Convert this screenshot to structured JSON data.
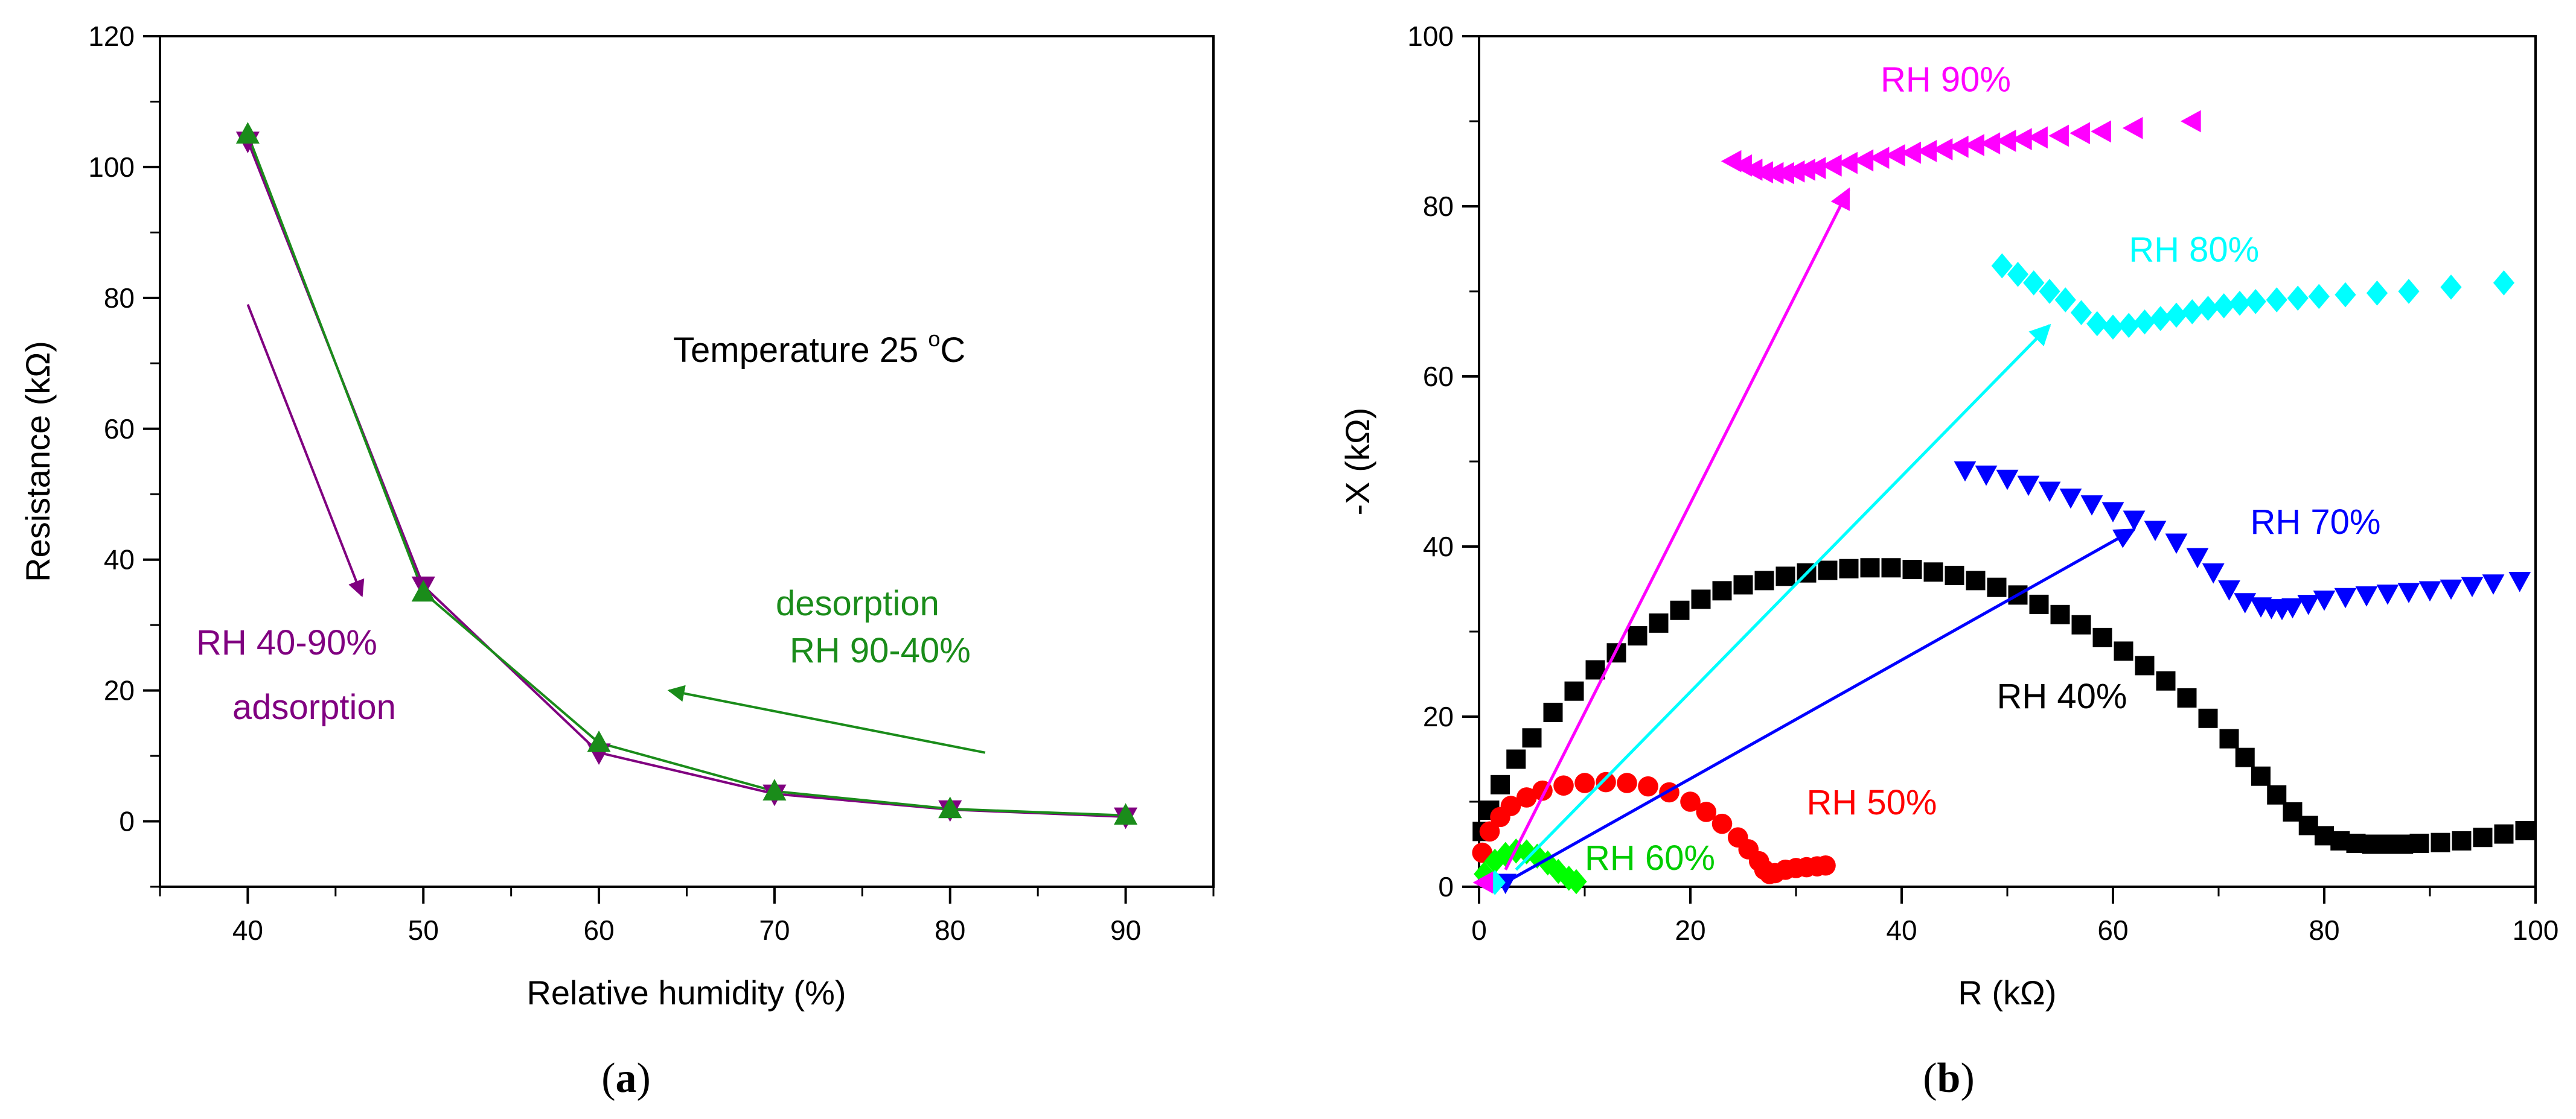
{
  "figure": {
    "panel_a_label": "a",
    "panel_b_label": "b"
  },
  "chart_data": [
    {
      "type": "line",
      "panel": "a",
      "title": "",
      "xlabel": "Relative humidity (%)",
      "ylabel": "Resistance (kΩ)",
      "xlim": [
        35,
        95
      ],
      "ylim": [
        -10,
        120
      ],
      "xticks": [
        40,
        50,
        60,
        70,
        80,
        90
      ],
      "yticks": [
        0,
        20,
        40,
        60,
        80,
        100,
        120
      ],
      "x": [
        40,
        50,
        60,
        70,
        80,
        90
      ],
      "series": [
        {
          "name": "adsorption RH 40-90%",
          "color": "#800080",
          "marker": "triangle-down",
          "values": [
            104,
            36,
            10.5,
            4.2,
            1.8,
            0.7
          ]
        },
        {
          "name": "desorption RH 90-40%",
          "color": "#1a8c1a",
          "marker": "triangle-up",
          "values": [
            105,
            35,
            12,
            4.6,
            1.9,
            0.9
          ]
        }
      ],
      "annotations": {
        "temperature_prefix": "Temperature 25 ",
        "temperature_deg": "o",
        "temperature_unit": "C",
        "adsorption_range": "RH 40-90%",
        "adsorption_word": "adsorption",
        "desorption_word": "desorption",
        "desorption_range": "RH 90-40%"
      },
      "arrows": [
        {
          "name": "adsorption-arrow",
          "color": "#800080",
          "from": [
            40,
            79
          ],
          "to": [
            46.5,
            34.5
          ]
        },
        {
          "name": "desorption-arrow",
          "color": "#1a8c1a",
          "from": [
            82,
            10.5
          ],
          "to": [
            64,
            20
          ]
        }
      ]
    },
    {
      "type": "scatter",
      "panel": "b",
      "title": "",
      "xlabel": "R (kΩ)",
      "ylabel": "-X (kΩ)",
      "xlim": [
        0,
        100
      ],
      "ylim": [
        0,
        100
      ],
      "xticks": [
        0,
        20,
        40,
        60,
        80,
        100
      ],
      "yticks": [
        0,
        20,
        40,
        60,
        80,
        100
      ],
      "series": [
        {
          "name": "RH 40%",
          "label": "RH 40%",
          "color": "#000000",
          "marker": "square",
          "x": [
            0.3,
            1,
            2,
            3.5,
            5,
            7,
            9,
            11,
            13,
            15,
            17,
            19,
            21,
            23,
            25,
            27,
            29,
            31,
            33,
            35,
            37,
            39,
            41,
            43,
            45,
            47,
            49,
            51,
            53,
            55,
            57,
            59,
            61,
            63,
            65,
            67,
            69,
            71,
            72.5,
            74,
            75.5,
            77,
            78.5,
            80,
            81.5,
            83,
            84.5,
            86,
            87.5,
            89,
            91,
            93,
            95,
            97,
            99
          ],
          "y": [
            6.5,
            9,
            12,
            15,
            17.5,
            20.5,
            23,
            25.5,
            27.5,
            29.5,
            31,
            32.5,
            33.8,
            34.8,
            35.5,
            36,
            36.5,
            36.9,
            37.2,
            37.4,
            37.5,
            37.5,
            37.3,
            37,
            36.6,
            36,
            35.2,
            34.3,
            33.2,
            32,
            30.8,
            29.3,
            27.7,
            26,
            24.2,
            22.2,
            19.8,
            17.4,
            15.2,
            13,
            10.8,
            8.8,
            7.2,
            6,
            5.4,
            5.1,
            5,
            5,
            5,
            5.1,
            5.2,
            5.4,
            5.8,
            6.2,
            6.6
          ]
        },
        {
          "name": "RH 50%",
          "label": "RH 50%",
          "color": "#ff0000",
          "marker": "circle",
          "x": [
            0.3,
            1,
            2,
            3,
            4.5,
            6,
            8,
            10,
            12,
            14,
            16,
            18,
            20,
            21.5,
            23,
            24.5,
            25.5,
            26.5,
            27,
            27.5,
            28,
            29,
            30,
            31,
            32,
            32.8
          ],
          "y": [
            4,
            6.5,
            8.2,
            9.5,
            10.5,
            11.3,
            11.9,
            12.2,
            12.3,
            12.2,
            11.8,
            11.1,
            10,
            8.8,
            7.4,
            5.8,
            4.4,
            3,
            2,
            1.5,
            1.6,
            2,
            2.2,
            2.3,
            2.4,
            2.5
          ]
        },
        {
          "name": "RH 60%",
          "label": "RH 60%",
          "color": "#00ff00",
          "marker": "diamond",
          "x": [
            0.5,
            1.5,
            2.5,
            3.5,
            4.5,
            5.5,
            6.5,
            7.5,
            8.5,
            9.2
          ],
          "y": [
            1.5,
            3,
            3.8,
            4.2,
            4.1,
            3.6,
            2.8,
            1.8,
            1,
            0.6
          ]
        },
        {
          "name": "RH 70%",
          "label": "RH 70%",
          "color": "#0000ff",
          "marker": "triangle-down",
          "x": [
            2.5,
            46,
            48,
            50,
            52,
            54,
            56,
            58,
            60,
            62,
            64,
            66,
            68,
            69.5,
            71,
            72.5,
            74,
            75,
            76,
            77,
            78.5,
            80,
            82,
            84,
            86,
            88,
            90,
            92,
            94,
            96,
            98.5
          ],
          "y": [
            0.5,
            49,
            48.5,
            48,
            47.3,
            46.6,
            45.8,
            45,
            44.2,
            43.2,
            42,
            40.5,
            38.8,
            37,
            35,
            33.5,
            33,
            32.8,
            32.7,
            32.9,
            33.3,
            33.8,
            34.1,
            34.3,
            34.5,
            34.7,
            34.9,
            35.1,
            35.4,
            35.7,
            36
          ]
        },
        {
          "name": "RH 80%",
          "label": "RH 80%",
          "color": "#00ffff",
          "marker": "diamond",
          "x": [
            1.5,
            49.5,
            51,
            52.5,
            54,
            55.5,
            57,
            58.5,
            60,
            61.5,
            63,
            64.5,
            66,
            67.5,
            69,
            70.5,
            72,
            73.5,
            75.5,
            77.5,
            79.5,
            82,
            85,
            88,
            92,
            97
          ],
          "y": [
            0.5,
            73,
            72,
            71,
            70,
            69,
            67.5,
            66.2,
            65.8,
            66,
            66.4,
            66.8,
            67.2,
            67.6,
            68,
            68.3,
            68.6,
            68.8,
            69,
            69.2,
            69.4,
            69.6,
            69.8,
            70,
            70.5,
            71
          ]
        },
        {
          "name": "RH 90%",
          "label": "RH 90%",
          "color": "#ff00ff",
          "marker": "triangle-left",
          "x": [
            0.5,
            24,
            25,
            26,
            27,
            28,
            29,
            30,
            31,
            32,
            33.5,
            35,
            36.5,
            38,
            39.5,
            41,
            42.5,
            44,
            45.5,
            47,
            48.5,
            50,
            51.5,
            53,
            55,
            57,
            59,
            62,
            67.5
          ],
          "y": [
            0.5,
            85.3,
            84.8,
            84.3,
            84,
            83.9,
            83.9,
            84.1,
            84.3,
            84.5,
            84.8,
            85.1,
            85.4,
            85.7,
            86,
            86.3,
            86.5,
            86.7,
            87,
            87.2,
            87.4,
            87.7,
            87.9,
            88.1,
            88.3,
            88.6,
            88.8,
            89.2,
            90
          ]
        }
      ],
      "arrows": [
        {
          "name": "rh90-arrow",
          "color": "#ff00ff",
          "from": [
            2.5,
            2
          ],
          "to": [
            35,
            82
          ]
        },
        {
          "name": "rh80-arrow",
          "color": "#00ffff",
          "from": [
            3.5,
            2
          ],
          "to": [
            54,
            66
          ]
        },
        {
          "name": "rh70-arrow",
          "color": "#0000ff",
          "from": [
            2.5,
            0.5
          ],
          "to": [
            62,
            42
          ]
        }
      ],
      "labels": [
        {
          "text": "RH 90%",
          "color": "#ff00ff",
          "at": [
            38,
            93.5
          ]
        },
        {
          "text": "RH 80%",
          "color": "#00ffff",
          "at": [
            61.5,
            73.5
          ]
        },
        {
          "text": "RH 70%",
          "color": "#0000ff",
          "at": [
            73,
            41.5
          ]
        },
        {
          "text": "RH 40%",
          "color": "#000000",
          "at": [
            49,
            21
          ]
        },
        {
          "text": "RH 50%",
          "color": "#ff0000",
          "at": [
            31,
            8.5
          ]
        },
        {
          "text": "RH 60%",
          "color": "#00cc00",
          "at": [
            10,
            2
          ]
        }
      ]
    }
  ]
}
